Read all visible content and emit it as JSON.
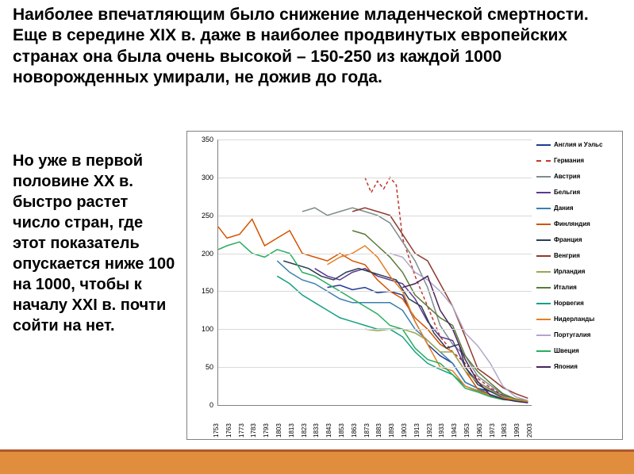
{
  "top_text": "Наиболее впечатляющим было снижение младенческой смертности. Еще в середине XIX в. даже в наиболее продвинутых европейских странах она была очень высокой – 150-250 из каждой 1000 новорожденных умирали, не дожив до года.",
  "side_text": "Но уже в первой половине XX в. быстро растет число стран, где этот показатель опускается ниже 100 на 1000, чтобы к началу XXI в. почти сойти на нет.",
  "chart": {
    "type": "line",
    "ylim": [
      0,
      350
    ],
    "ytick_step": 50,
    "yticks": [
      0,
      50,
      100,
      150,
      200,
      250,
      300,
      350
    ],
    "xticks": [
      1753,
      1763,
      1773,
      1783,
      1793,
      1803,
      1813,
      1823,
      1833,
      1843,
      1853,
      1863,
      1873,
      1883,
      1893,
      1903,
      1913,
      1923,
      1933,
      1943,
      1953,
      1963,
      1973,
      1983,
      1993,
      2003
    ],
    "xlim": [
      1753,
      2003
    ],
    "title_fontsize": 9,
    "label_fontsize": 9,
    "tick_fontsize": 8,
    "background_color": "#ffffff",
    "grid_color": "#d9d9d9",
    "axis_color": "#808080",
    "line_width": 1.5,
    "series": [
      {
        "name": "Англия и Уэльс",
        "color": "#1f3a93",
        "dashed": false,
        "start": 1840,
        "data": [
          [
            1840,
            155
          ],
          [
            1850,
            158
          ],
          [
            1860,
            152
          ],
          [
            1870,
            155
          ],
          [
            1880,
            148
          ],
          [
            1890,
            150
          ],
          [
            1900,
            145
          ],
          [
            1910,
            110
          ],
          [
            1920,
            80
          ],
          [
            1930,
            65
          ],
          [
            1940,
            55
          ],
          [
            1950,
            30
          ],
          [
            1960,
            22
          ],
          [
            1970,
            18
          ],
          [
            1980,
            12
          ],
          [
            1990,
            8
          ],
          [
            2000,
            5
          ]
        ]
      },
      {
        "name": "Германия",
        "color": "#c0392b",
        "dashed": true,
        "start": 1870,
        "data": [
          [
            1870,
            300
          ],
          [
            1875,
            280
          ],
          [
            1880,
            295
          ],
          [
            1885,
            285
          ],
          [
            1890,
            300
          ],
          [
            1895,
            290
          ],
          [
            1900,
            220
          ],
          [
            1910,
            170
          ],
          [
            1920,
            130
          ],
          [
            1930,
            90
          ],
          [
            1940,
            70
          ],
          [
            1950,
            55
          ],
          [
            1960,
            35
          ],
          [
            1970,
            23
          ],
          [
            1980,
            13
          ],
          [
            1990,
            7
          ],
          [
            2000,
            4
          ]
        ]
      },
      {
        "name": "Австрия",
        "color": "#7e8c8d",
        "dashed": false,
        "start": 1820,
        "data": [
          [
            1820,
            255
          ],
          [
            1830,
            260
          ],
          [
            1840,
            250
          ],
          [
            1850,
            255
          ],
          [
            1860,
            260
          ],
          [
            1870,
            255
          ],
          [
            1880,
            250
          ],
          [
            1890,
            240
          ],
          [
            1900,
            215
          ],
          [
            1910,
            190
          ],
          [
            1920,
            155
          ],
          [
            1930,
            105
          ],
          [
            1940,
            80
          ],
          [
            1950,
            65
          ],
          [
            1960,
            38
          ],
          [
            1970,
            26
          ],
          [
            1980,
            14
          ],
          [
            1990,
            8
          ],
          [
            2000,
            5
          ]
        ]
      },
      {
        "name": "Бельгия",
        "color": "#5b3a91",
        "dashed": false,
        "start": 1830,
        "data": [
          [
            1830,
            180
          ],
          [
            1840,
            170
          ],
          [
            1850,
            165
          ],
          [
            1860,
            175
          ],
          [
            1870,
            180
          ],
          [
            1880,
            170
          ],
          [
            1890,
            165
          ],
          [
            1900,
            160
          ],
          [
            1910,
            140
          ],
          [
            1920,
            110
          ],
          [
            1930,
            90
          ],
          [
            1940,
            85
          ],
          [
            1950,
            50
          ],
          [
            1960,
            30
          ],
          [
            1970,
            21
          ],
          [
            1980,
            12
          ],
          [
            1990,
            8
          ],
          [
            2000,
            5
          ]
        ]
      },
      {
        "name": "Дания",
        "color": "#3b7fb0",
        "dashed": false,
        "start": 1800,
        "data": [
          [
            1800,
            190
          ],
          [
            1810,
            175
          ],
          [
            1820,
            165
          ],
          [
            1830,
            160
          ],
          [
            1840,
            150
          ],
          [
            1850,
            140
          ],
          [
            1860,
            135
          ],
          [
            1870,
            135
          ],
          [
            1880,
            135
          ],
          [
            1890,
            135
          ],
          [
            1900,
            125
          ],
          [
            1910,
            100
          ],
          [
            1920,
            85
          ],
          [
            1930,
            70
          ],
          [
            1940,
            55
          ],
          [
            1950,
            30
          ],
          [
            1960,
            22
          ],
          [
            1970,
            14
          ],
          [
            1980,
            9
          ],
          [
            1990,
            7
          ],
          [
            2000,
            5
          ]
        ]
      },
      {
        "name": "Финляндия",
        "color": "#d35400",
        "dashed": false,
        "start": 1750,
        "data": [
          [
            1753,
            235
          ],
          [
            1760,
            220
          ],
          [
            1770,
            225
          ],
          [
            1780,
            245
          ],
          [
            1790,
            210
          ],
          [
            1800,
            220
          ],
          [
            1810,
            230
          ],
          [
            1820,
            200
          ],
          [
            1830,
            195
          ],
          [
            1840,
            190
          ],
          [
            1850,
            200
          ],
          [
            1860,
            190
          ],
          [
            1870,
            185
          ],
          [
            1880,
            165
          ],
          [
            1890,
            150
          ],
          [
            1900,
            140
          ],
          [
            1910,
            115
          ],
          [
            1920,
            100
          ],
          [
            1930,
            80
          ],
          [
            1940,
            70
          ],
          [
            1950,
            45
          ],
          [
            1960,
            21
          ],
          [
            1970,
            13
          ],
          [
            1980,
            8
          ],
          [
            1990,
            6
          ],
          [
            2000,
            4
          ]
        ]
      },
      {
        "name": "Франция",
        "color": "#2c3e50",
        "dashed": false,
        "start": 1805,
        "data": [
          [
            1805,
            190
          ],
          [
            1815,
            185
          ],
          [
            1825,
            180
          ],
          [
            1835,
            170
          ],
          [
            1845,
            165
          ],
          [
            1855,
            175
          ],
          [
            1865,
            180
          ],
          [
            1875,
            175
          ],
          [
            1885,
            170
          ],
          [
            1895,
            165
          ],
          [
            1905,
            140
          ],
          [
            1915,
            130
          ],
          [
            1925,
            95
          ],
          [
            1935,
            75
          ],
          [
            1945,
            80
          ],
          [
            1950,
            50
          ],
          [
            1960,
            27
          ],
          [
            1970,
            18
          ],
          [
            1980,
            10
          ],
          [
            1990,
            7
          ],
          [
            2000,
            4
          ]
        ]
      },
      {
        "name": "Венгрия",
        "color": "#8e3b2f",
        "dashed": false,
        "start": 1860,
        "data": [
          [
            1860,
            255
          ],
          [
            1870,
            260
          ],
          [
            1880,
            255
          ],
          [
            1890,
            250
          ],
          [
            1900,
            225
          ],
          [
            1910,
            200
          ],
          [
            1920,
            190
          ],
          [
            1930,
            160
          ],
          [
            1940,
            130
          ],
          [
            1950,
            90
          ],
          [
            1960,
            48
          ],
          [
            1970,
            36
          ],
          [
            1980,
            23
          ],
          [
            1990,
            15
          ],
          [
            2000,
            9
          ]
        ]
      },
      {
        "name": "Ирландия",
        "color": "#9aa84f",
        "dashed": false,
        "start": 1870,
        "data": [
          [
            1870,
            100
          ],
          [
            1880,
            98
          ],
          [
            1890,
            100
          ],
          [
            1900,
            100
          ],
          [
            1910,
            95
          ],
          [
            1920,
            85
          ],
          [
            1930,
            70
          ],
          [
            1940,
            70
          ],
          [
            1950,
            45
          ],
          [
            1960,
            30
          ],
          [
            1970,
            20
          ],
          [
            1980,
            11
          ],
          [
            1990,
            8
          ],
          [
            2000,
            6
          ]
        ]
      },
      {
        "name": "Италия",
        "color": "#5a7a3a",
        "dashed": false,
        "start": 1860,
        "data": [
          [
            1860,
            230
          ],
          [
            1870,
            225
          ],
          [
            1880,
            210
          ],
          [
            1890,
            195
          ],
          [
            1900,
            175
          ],
          [
            1910,
            145
          ],
          [
            1920,
            130
          ],
          [
            1930,
            115
          ],
          [
            1940,
            105
          ],
          [
            1950,
            65
          ],
          [
            1960,
            44
          ],
          [
            1970,
            29
          ],
          [
            1980,
            15
          ],
          [
            1990,
            8
          ],
          [
            2000,
            5
          ]
        ]
      },
      {
        "name": "Норвегия",
        "color": "#16a085",
        "dashed": false,
        "start": 1800,
        "data": [
          [
            1800,
            170
          ],
          [
            1810,
            160
          ],
          [
            1820,
            145
          ],
          [
            1830,
            135
          ],
          [
            1840,
            125
          ],
          [
            1850,
            115
          ],
          [
            1860,
            110
          ],
          [
            1870,
            105
          ],
          [
            1880,
            100
          ],
          [
            1890,
            100
          ],
          [
            1900,
            90
          ],
          [
            1910,
            70
          ],
          [
            1920,
            55
          ],
          [
            1930,
            47
          ],
          [
            1940,
            40
          ],
          [
            1950,
            25
          ],
          [
            1960,
            19
          ],
          [
            1970,
            13
          ],
          [
            1980,
            8
          ],
          [
            1990,
            7
          ],
          [
            2000,
            4
          ]
        ]
      },
      {
        "name": "Нидерланды",
        "color": "#e67e22",
        "dashed": false,
        "start": 1840,
        "data": [
          [
            1840,
            185
          ],
          [
            1850,
            195
          ],
          [
            1860,
            200
          ],
          [
            1870,
            210
          ],
          [
            1880,
            195
          ],
          [
            1890,
            170
          ],
          [
            1900,
            150
          ],
          [
            1910,
            110
          ],
          [
            1920,
            80
          ],
          [
            1930,
            50
          ],
          [
            1940,
            45
          ],
          [
            1950,
            25
          ],
          [
            1960,
            18
          ],
          [
            1970,
            13
          ],
          [
            1980,
            9
          ],
          [
            1990,
            7
          ],
          [
            2000,
            5
          ]
        ]
      },
      {
        "name": "Португалия",
        "color": "#b0a7c9",
        "dashed": false,
        "start": 1890,
        "data": [
          [
            1890,
            200
          ],
          [
            1900,
            195
          ],
          [
            1910,
            175
          ],
          [
            1920,
            165
          ],
          [
            1930,
            150
          ],
          [
            1940,
            130
          ],
          [
            1950,
            95
          ],
          [
            1960,
            78
          ],
          [
            1970,
            55
          ],
          [
            1980,
            25
          ],
          [
            1990,
            11
          ],
          [
            2000,
            6
          ]
        ]
      },
      {
        "name": "Швеция",
        "color": "#27ae60",
        "dashed": false,
        "start": 1750,
        "data": [
          [
            1753,
            205
          ],
          [
            1760,
            210
          ],
          [
            1770,
            215
          ],
          [
            1780,
            200
          ],
          [
            1790,
            195
          ],
          [
            1800,
            205
          ],
          [
            1810,
            200
          ],
          [
            1820,
            175
          ],
          [
            1830,
            170
          ],
          [
            1840,
            160
          ],
          [
            1850,
            150
          ],
          [
            1860,
            140
          ],
          [
            1870,
            130
          ],
          [
            1880,
            120
          ],
          [
            1890,
            105
          ],
          [
            1900,
            100
          ],
          [
            1910,
            75
          ],
          [
            1920,
            60
          ],
          [
            1930,
            55
          ],
          [
            1940,
            40
          ],
          [
            1950,
            22
          ],
          [
            1960,
            17
          ],
          [
            1970,
            11
          ],
          [
            1980,
            7
          ],
          [
            1990,
            6
          ],
          [
            2000,
            3
          ]
        ]
      },
      {
        "name": "Япония",
        "color": "#4a235a",
        "dashed": false,
        "start": 1900,
        "data": [
          [
            1900,
            155
          ],
          [
            1910,
            160
          ],
          [
            1920,
            170
          ],
          [
            1930,
            125
          ],
          [
            1940,
            100
          ],
          [
            1950,
            60
          ],
          [
            1960,
            31
          ],
          [
            1970,
            13
          ],
          [
            1980,
            8
          ],
          [
            1990,
            5
          ],
          [
            2000,
            3
          ]
        ]
      }
    ]
  },
  "footer": {
    "bar_color": "#e08e3e",
    "line_color": "#b0572b"
  }
}
